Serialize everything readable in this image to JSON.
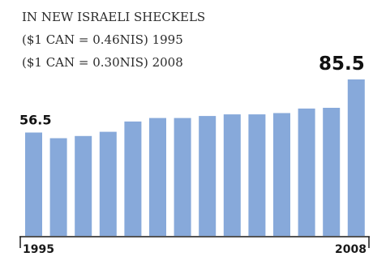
{
  "header": {
    "unit_line": "IN NEW ISRAELI SHECKELS",
    "rate_line_1995": "($1 CAN = 0.46NIS) 1995",
    "rate_line_2008": "($1 CAN = 0.30NIS) 2008"
  },
  "colors": {
    "bar": "#87a9da",
    "axis": "#1a1a1a"
  },
  "chart_data": {
    "type": "bar",
    "title": "",
    "xlabel": "",
    "ylabel": "",
    "categories": [
      "1995",
      "1996",
      "1997",
      "1998",
      "1999",
      "2000",
      "2001",
      "2002",
      "2003",
      "2004",
      "2005",
      "2006",
      "2007",
      "2008"
    ],
    "values": [
      56.5,
      53.4,
      54.6,
      56.9,
      62.5,
      64.4,
      64.4,
      65.5,
      66.4,
      66.4,
      67.1,
      69.6,
      70.0,
      85.5
    ],
    "ylim": [
      0,
      85.5
    ],
    "shown_tick_labels": [
      "1995",
      "2008"
    ],
    "data_labels": [
      {
        "category": "1995",
        "text": "56.5"
      },
      {
        "category": "2008",
        "text": "85.5"
      }
    ],
    "grid": false,
    "legend": "none"
  }
}
